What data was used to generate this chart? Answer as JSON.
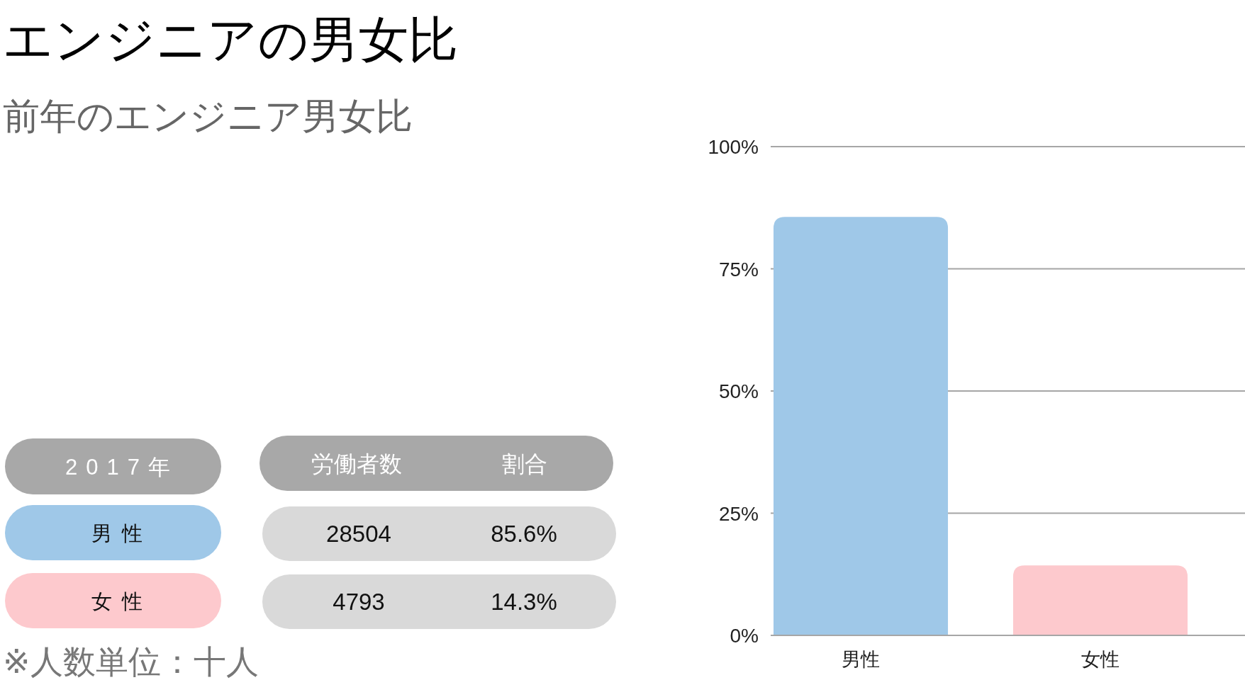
{
  "chart_data": {
    "type": "bar",
    "title": "エンジニアの男女比",
    "subtitle": "前年のエンジニア男女比",
    "categories": [
      "男性",
      "女性"
    ],
    "values": [
      85.6,
      14.3
    ],
    "colors": [
      "#9fc8e8",
      "#fdc9cd"
    ],
    "ylim": [
      0,
      100
    ],
    "yticks": [
      {
        "value": 0,
        "label": "0%"
      },
      {
        "value": 25,
        "label": "25%"
      },
      {
        "value": 50,
        "label": "50%"
      },
      {
        "value": 75,
        "label": "75%"
      },
      {
        "value": 100,
        "label": "100%"
      }
    ],
    "grid": "y",
    "annotations": [
      "2017年",
      "労働者数",
      "割合",
      "男性",
      "女性",
      "28504",
      "4793",
      "85.6%",
      "14.3%",
      "※人数単位：十人"
    ]
  }
}
